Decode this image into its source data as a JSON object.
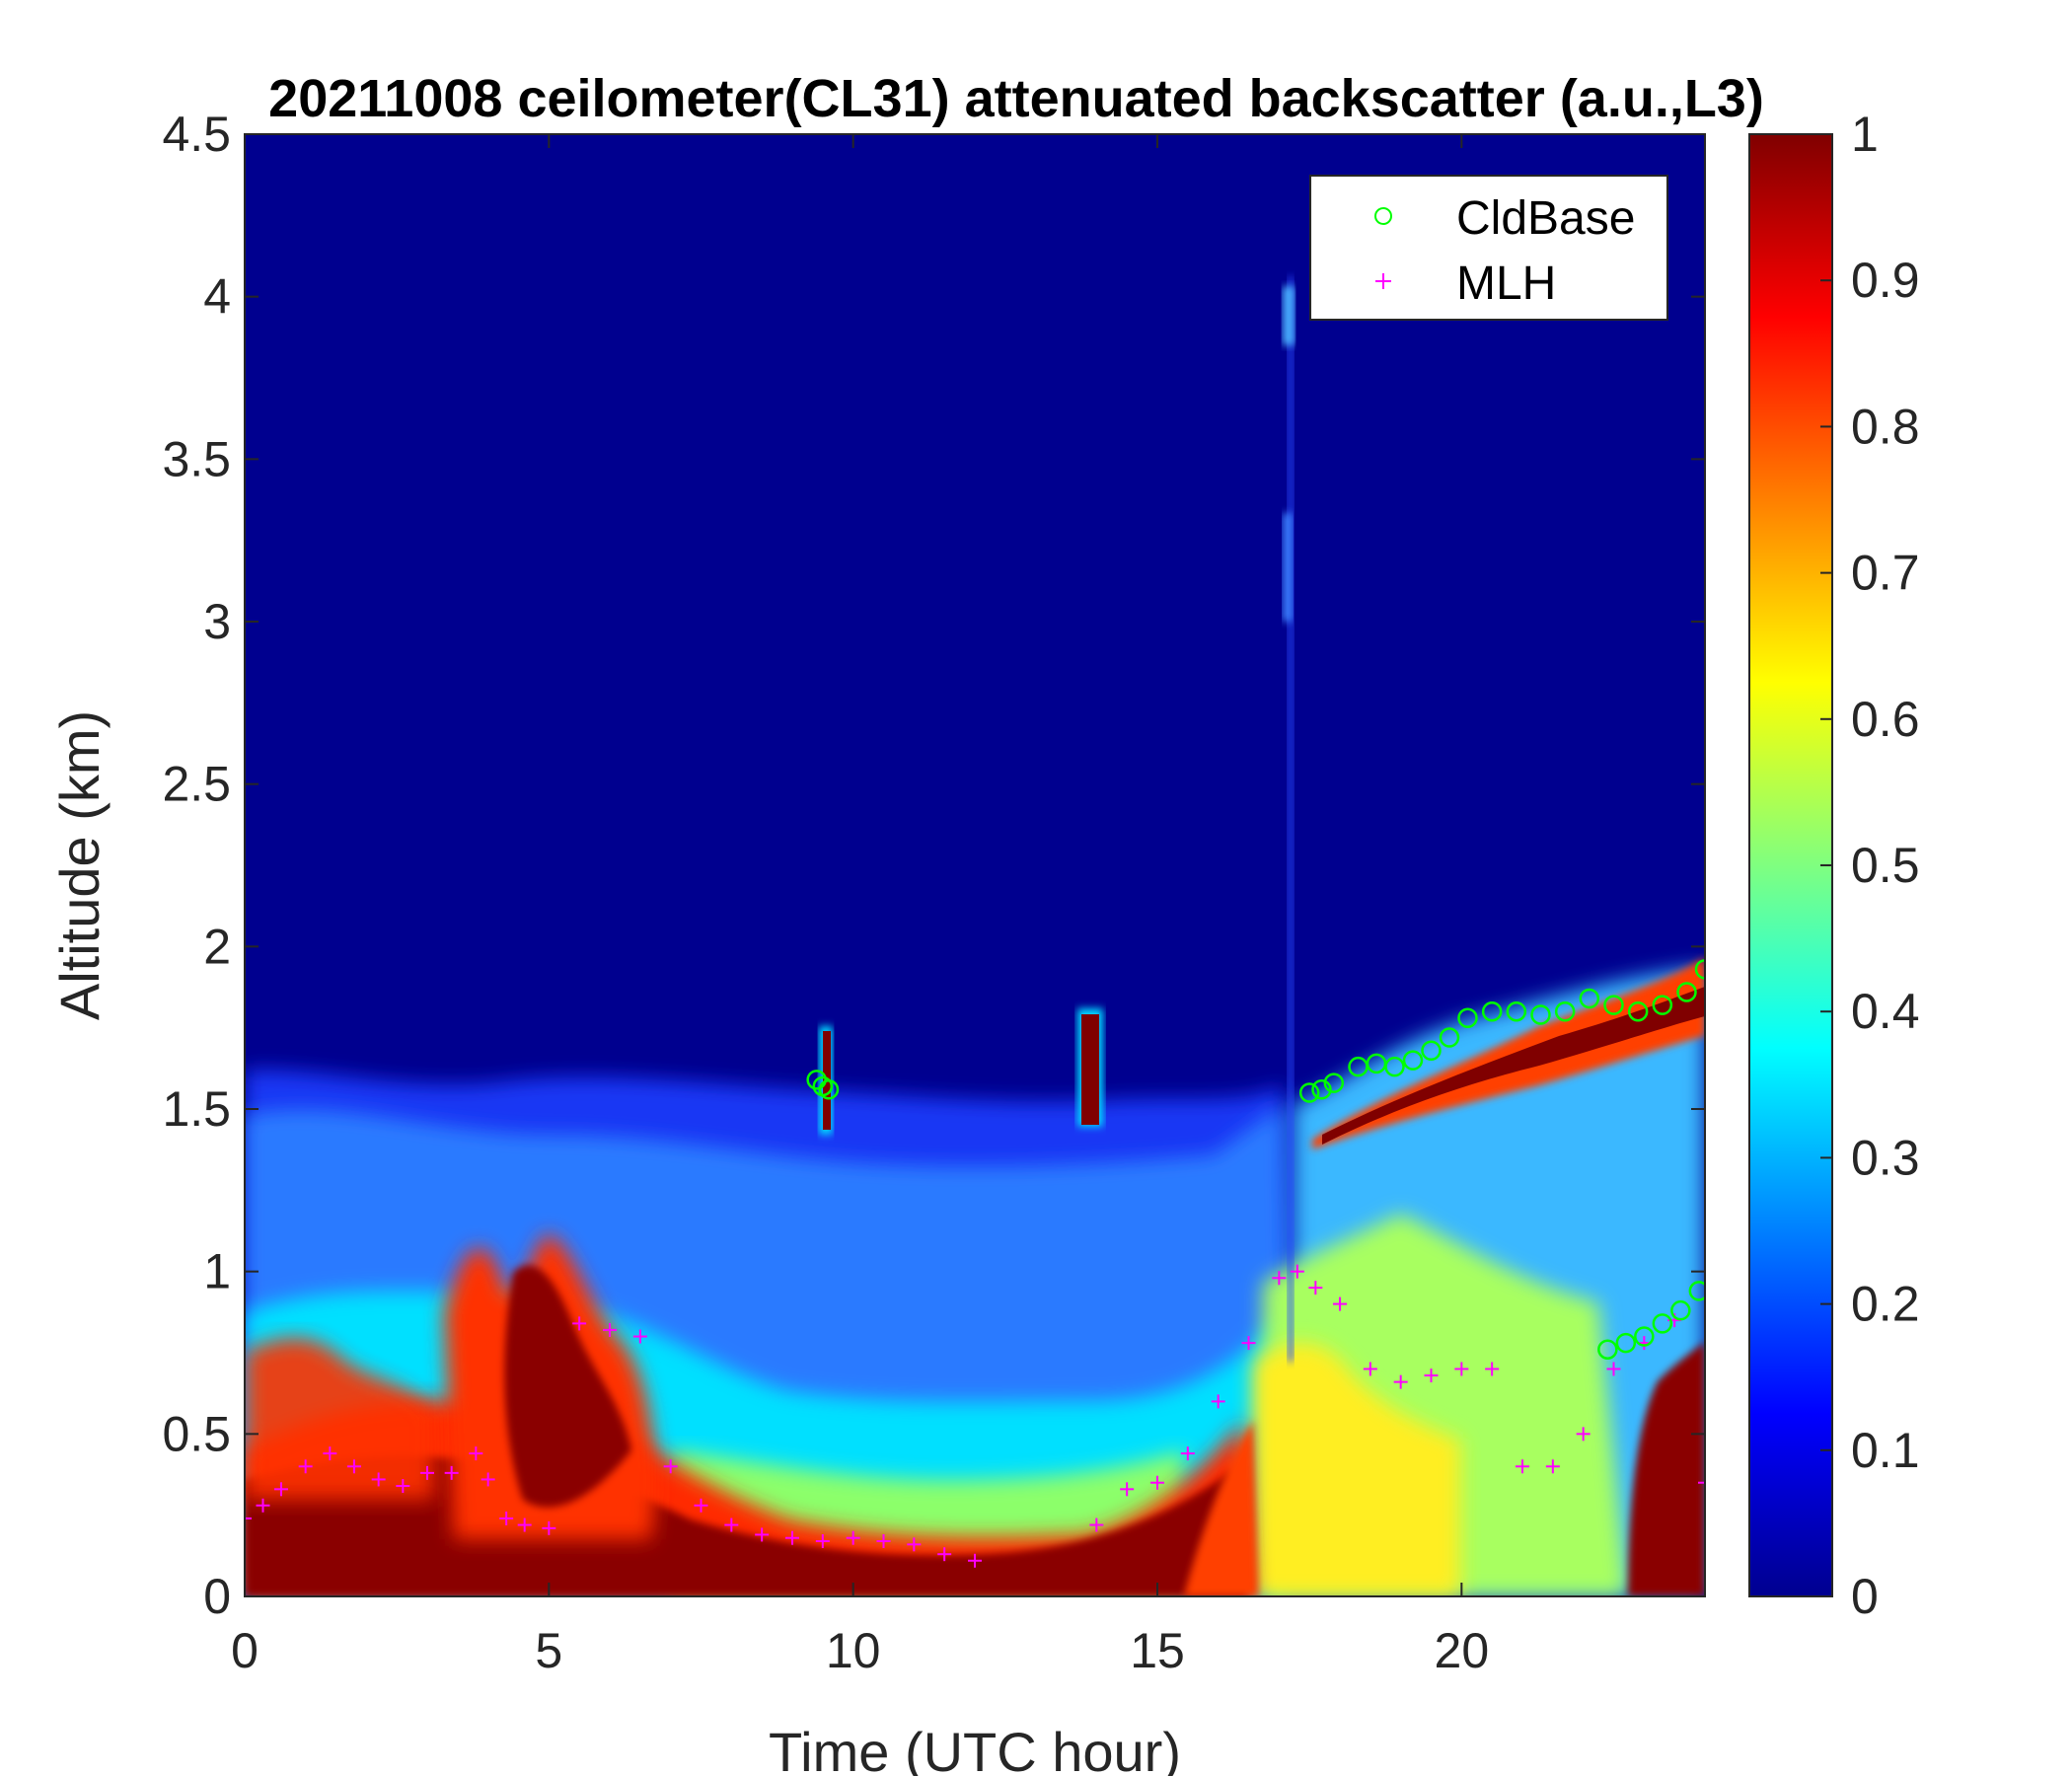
{
  "chart_data": {
    "type": "heatmap",
    "title": "20211008 ceilometer(CL31) attenuated backscatter (a.u.,L3)",
    "xlabel": "Time (UTC hour)",
    "ylabel": "Altitude (km)",
    "xlim": [
      0,
      24
    ],
    "ylim": [
      0,
      4.5
    ],
    "xticks": [
      "0",
      "5",
      "10",
      "15",
      "20"
    ],
    "yticks": [
      "0",
      "0.5",
      "1",
      "1.5",
      "2",
      "2.5",
      "3",
      "3.5",
      "4",
      "4.5"
    ],
    "colorbar": {
      "colormap": "jet",
      "range": [
        0,
        1
      ],
      "ticks": [
        "0",
        "0.1",
        "0.2",
        "0.3",
        "0.4",
        "0.5",
        "0.6",
        "0.7",
        "0.8",
        "0.9",
        "1"
      ]
    },
    "legend": {
      "placement": "top-right",
      "entries": [
        {
          "name": "CldBase",
          "marker": "circle",
          "color": "#00ff00"
        },
        {
          "name": "MLH",
          "marker": "plus",
          "color": "#ff00ff"
        }
      ]
    },
    "series": [
      {
        "name": "MLH",
        "marker": "plus",
        "color": "#ff00ff",
        "x": [
          0,
          0.3,
          0.6,
          1.0,
          1.4,
          1.8,
          2.2,
          2.6,
          3.0,
          3.4,
          3.8,
          4.0,
          4.3,
          4.6,
          5.0,
          5.5,
          6.0,
          6.5,
          7.0,
          7.5,
          8.0,
          8.5,
          9.0,
          9.5,
          10.0,
          10.5,
          11.0,
          11.5,
          12.0,
          14.0,
          14.5,
          15.0,
          15.5,
          16.0,
          16.5,
          17.0,
          17.3,
          17.6,
          18.0,
          18.5,
          19.0,
          19.5,
          20.0,
          20.5,
          21.0,
          21.5,
          22.0,
          22.5,
          23.0,
          23.5,
          24.0
        ],
        "y": [
          0.24,
          0.28,
          0.33,
          0.4,
          0.44,
          0.4,
          0.36,
          0.34,
          0.38,
          0.38,
          0.44,
          0.36,
          0.24,
          0.22,
          0.21,
          0.84,
          0.82,
          0.8,
          0.4,
          0.28,
          0.22,
          0.19,
          0.18,
          0.17,
          0.18,
          0.17,
          0.16,
          0.13,
          0.11,
          0.22,
          0.33,
          0.35,
          0.44,
          0.6,
          0.78,
          0.98,
          1.0,
          0.95,
          0.9,
          0.7,
          0.66,
          0.68,
          0.7,
          0.7,
          0.4,
          0.4,
          0.5,
          0.7,
          0.78,
          0.85,
          0.35
        ]
      },
      {
        "name": "CldBase",
        "marker": "circle",
        "color": "#00ff00",
        "x": [
          9.4,
          9.5,
          9.6,
          17.5,
          17.7,
          17.9,
          18.3,
          18.6,
          18.9,
          19.2,
          19.5,
          19.8,
          20.1,
          20.5,
          20.9,
          21.3,
          21.7,
          22.1,
          22.5,
          22.9,
          23.3,
          23.7,
          24.0,
          22.4,
          22.7,
          23.0,
          23.3,
          23.6,
          23.9
        ],
        "y": [
          1.59,
          1.57,
          1.56,
          1.55,
          1.56,
          1.58,
          1.63,
          1.64,
          1.63,
          1.65,
          1.68,
          1.72,
          1.78,
          1.8,
          1.8,
          1.79,
          1.8,
          1.84,
          1.82,
          1.8,
          1.82,
          1.86,
          1.93,
          0.76,
          0.78,
          0.8,
          0.84,
          0.88,
          0.94
        ]
      }
    ]
  }
}
